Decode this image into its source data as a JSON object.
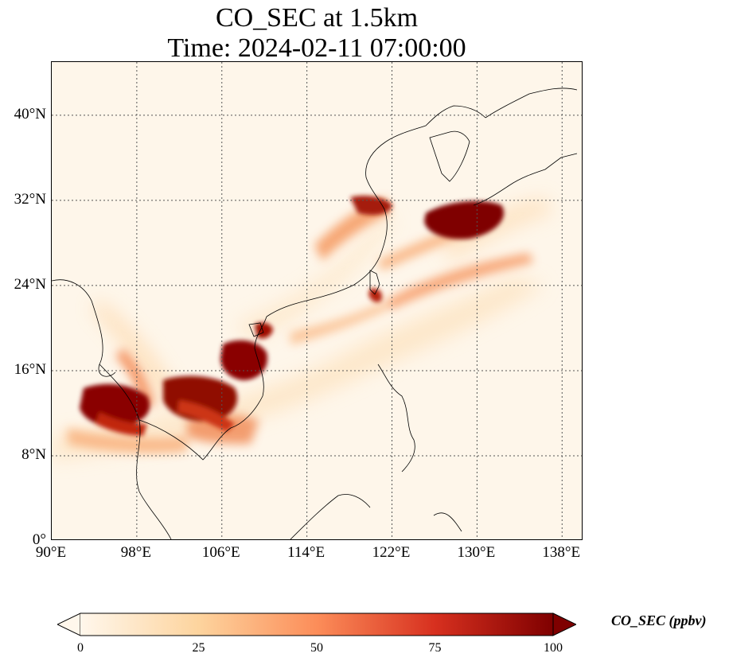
{
  "title_line1": "CO_SEC at 1.5km",
  "title_line2": "Time: 2024-02-11 07:00:00",
  "map": {
    "lon_range": [
      90,
      140
    ],
    "lat_range": [
      0,
      45
    ],
    "lon_ticks": [
      "90°E",
      "98°E",
      "106°E",
      "114°E",
      "122°E",
      "130°E",
      "138°E"
    ],
    "lat_ticks": [
      "0°",
      "8°N",
      "16°N",
      "24°N",
      "32°N",
      "40°N"
    ],
    "gridlines": true
  },
  "colorbar": {
    "label": "CO_SEC (ppbv)",
    "ticks": [
      "0",
      "25",
      "50",
      "75",
      "100"
    ],
    "range": [
      0,
      100
    ],
    "extend": "both",
    "colormap": "OrRd",
    "colors": [
      "#fff7ec",
      "#fdd49e",
      "#fc8d59",
      "#d7301f",
      "#7f0000"
    ]
  }
}
